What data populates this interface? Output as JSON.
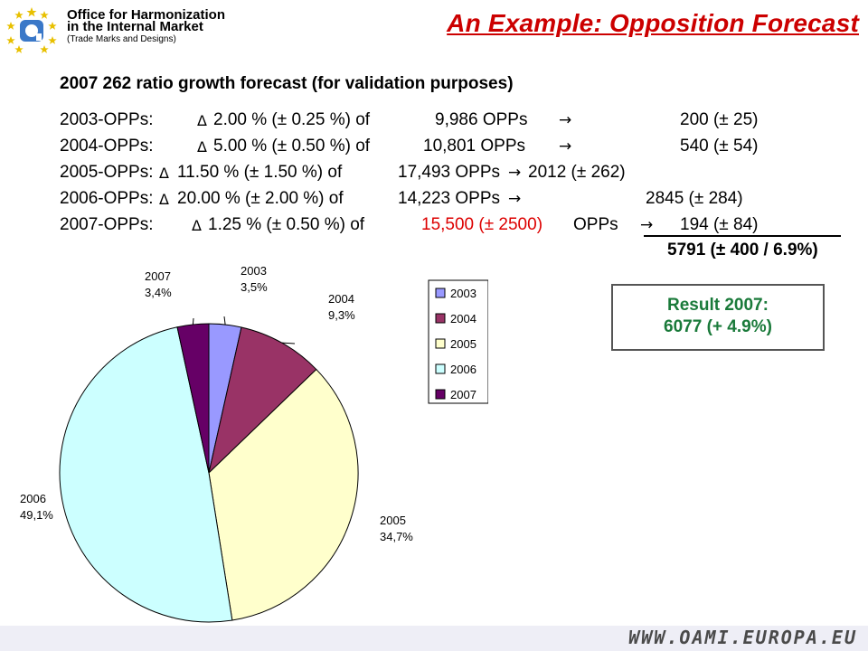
{
  "header": {
    "org_line1": "Office for Harmonization",
    "org_line2": "in the Internal Market",
    "org_line3": "(Trade Marks and Designs)",
    "title": "An Example: Opposition Forecast"
  },
  "subtitle": "2007 262 ratio growth forecast (for validation purposes)",
  "forecast_lines": [
    {
      "label": "2003-OPPs:",
      "pct": "2.00 % (± 0.25 %) of",
      "base": "9,986 OPPs",
      "result": "200 (± 25)"
    },
    {
      "label": "2004-OPPs:",
      "pct": "5.00 % (± 0.50 %) of",
      "base": "10,801 OPPs",
      "result": "540 (± 54)"
    },
    {
      "label": "2005-OPPs:",
      "pct": "11.50 % (± 1.50 %) of",
      "base": "17,493 OPPs",
      "result": "2012 (± 262)"
    },
    {
      "label": "2006-OPPs:",
      "pct": "20.00 % (± 2.00 %) of",
      "base": "14,223 OPPs",
      "result": "2845 (± 284)"
    },
    {
      "label": "2007-OPPs:",
      "pct": "1.25 % (± 0.50 %) of",
      "base_red": "15,500 (± 2500)",
      "base_suffix": "OPPs",
      "result": "194 (± 84)"
    }
  ],
  "total": "5791 (± 400 / 6.9%)",
  "result_box": {
    "line1": "Result 2007:",
    "line2": "6077 (+ 4.9%)"
  },
  "colors": {
    "title": "#cc0000",
    "red_value": "#dd0000",
    "result_text": "#1a7a3a"
  },
  "footer": {
    "url": "WWW.OAMI.EUROPA.EU"
  },
  "chart_data": {
    "type": "pie",
    "slices": [
      {
        "label": "2003",
        "value": 3.5,
        "value_label": "3,5%",
        "color": "#9999ff"
      },
      {
        "label": "2004",
        "value": 9.3,
        "value_label": "9,3%",
        "color": "#993366"
      },
      {
        "label": "2005",
        "value": 34.7,
        "value_label": "34,7%",
        "color": "#ffffcc"
      },
      {
        "label": "2006",
        "value": 49.1,
        "value_label": "49,1%",
        "color": "#ccffff"
      },
      {
        "label": "2007",
        "value": 3.4,
        "value_label": "3,4%",
        "color": "#660066"
      }
    ],
    "legend": [
      "2003",
      "2004",
      "2005",
      "2006",
      "2007"
    ],
    "legend_placement": "right"
  }
}
